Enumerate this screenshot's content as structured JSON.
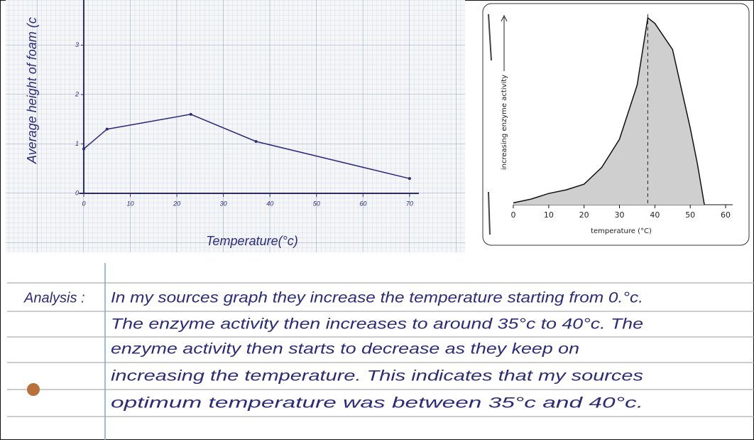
{
  "chart_data": [
    {
      "type": "line",
      "xlabel": "Temperature(°c)",
      "ylabel": "Average height of foam (c",
      "x": [
        0,
        5,
        23,
        37,
        70
      ],
      "values": [
        0.9,
        1.3,
        1.6,
        1.05,
        0.3
      ],
      "color": "#2b2b7c",
      "xlim": [
        -1,
        72
      ],
      "ylim": [
        0,
        3.9
      ],
      "xticks": [
        0,
        10,
        20,
        30,
        40,
        50,
        60,
        70
      ],
      "yticks": [
        0,
        1,
        2,
        3
      ],
      "grid": true
    },
    {
      "type": "area",
      "xlabel": "temperature (°C)",
      "ylabel": "increasing enzyme activity",
      "x": [
        0,
        5,
        10,
        15,
        20,
        25,
        30,
        35,
        38,
        40,
        45,
        50,
        52,
        54
      ],
      "values": [
        1,
        3,
        6,
        8,
        11,
        20,
        35,
        64,
        100,
        97,
        83,
        41,
        22,
        0
      ],
      "color": "#cfcfcf",
      "xlim": [
        0,
        62
      ],
      "ylim": [
        0,
        100
      ],
      "xticks": [
        0,
        10,
        20,
        30,
        40,
        50,
        60
      ],
      "vline": 38,
      "grid": false
    }
  ],
  "notes": {
    "label": "Analysis :",
    "lines": [
      "In my sources graph they increase the temperature starting from 0.°c.",
      "The enzyme activity then increases to around 35°c to 40°c. The",
      "enzyme activity then starts to decrease as they keep on",
      "increasing the temperature. This indicates that my sources",
      "optimum temperature was between 35°c and 40°c."
    ]
  }
}
